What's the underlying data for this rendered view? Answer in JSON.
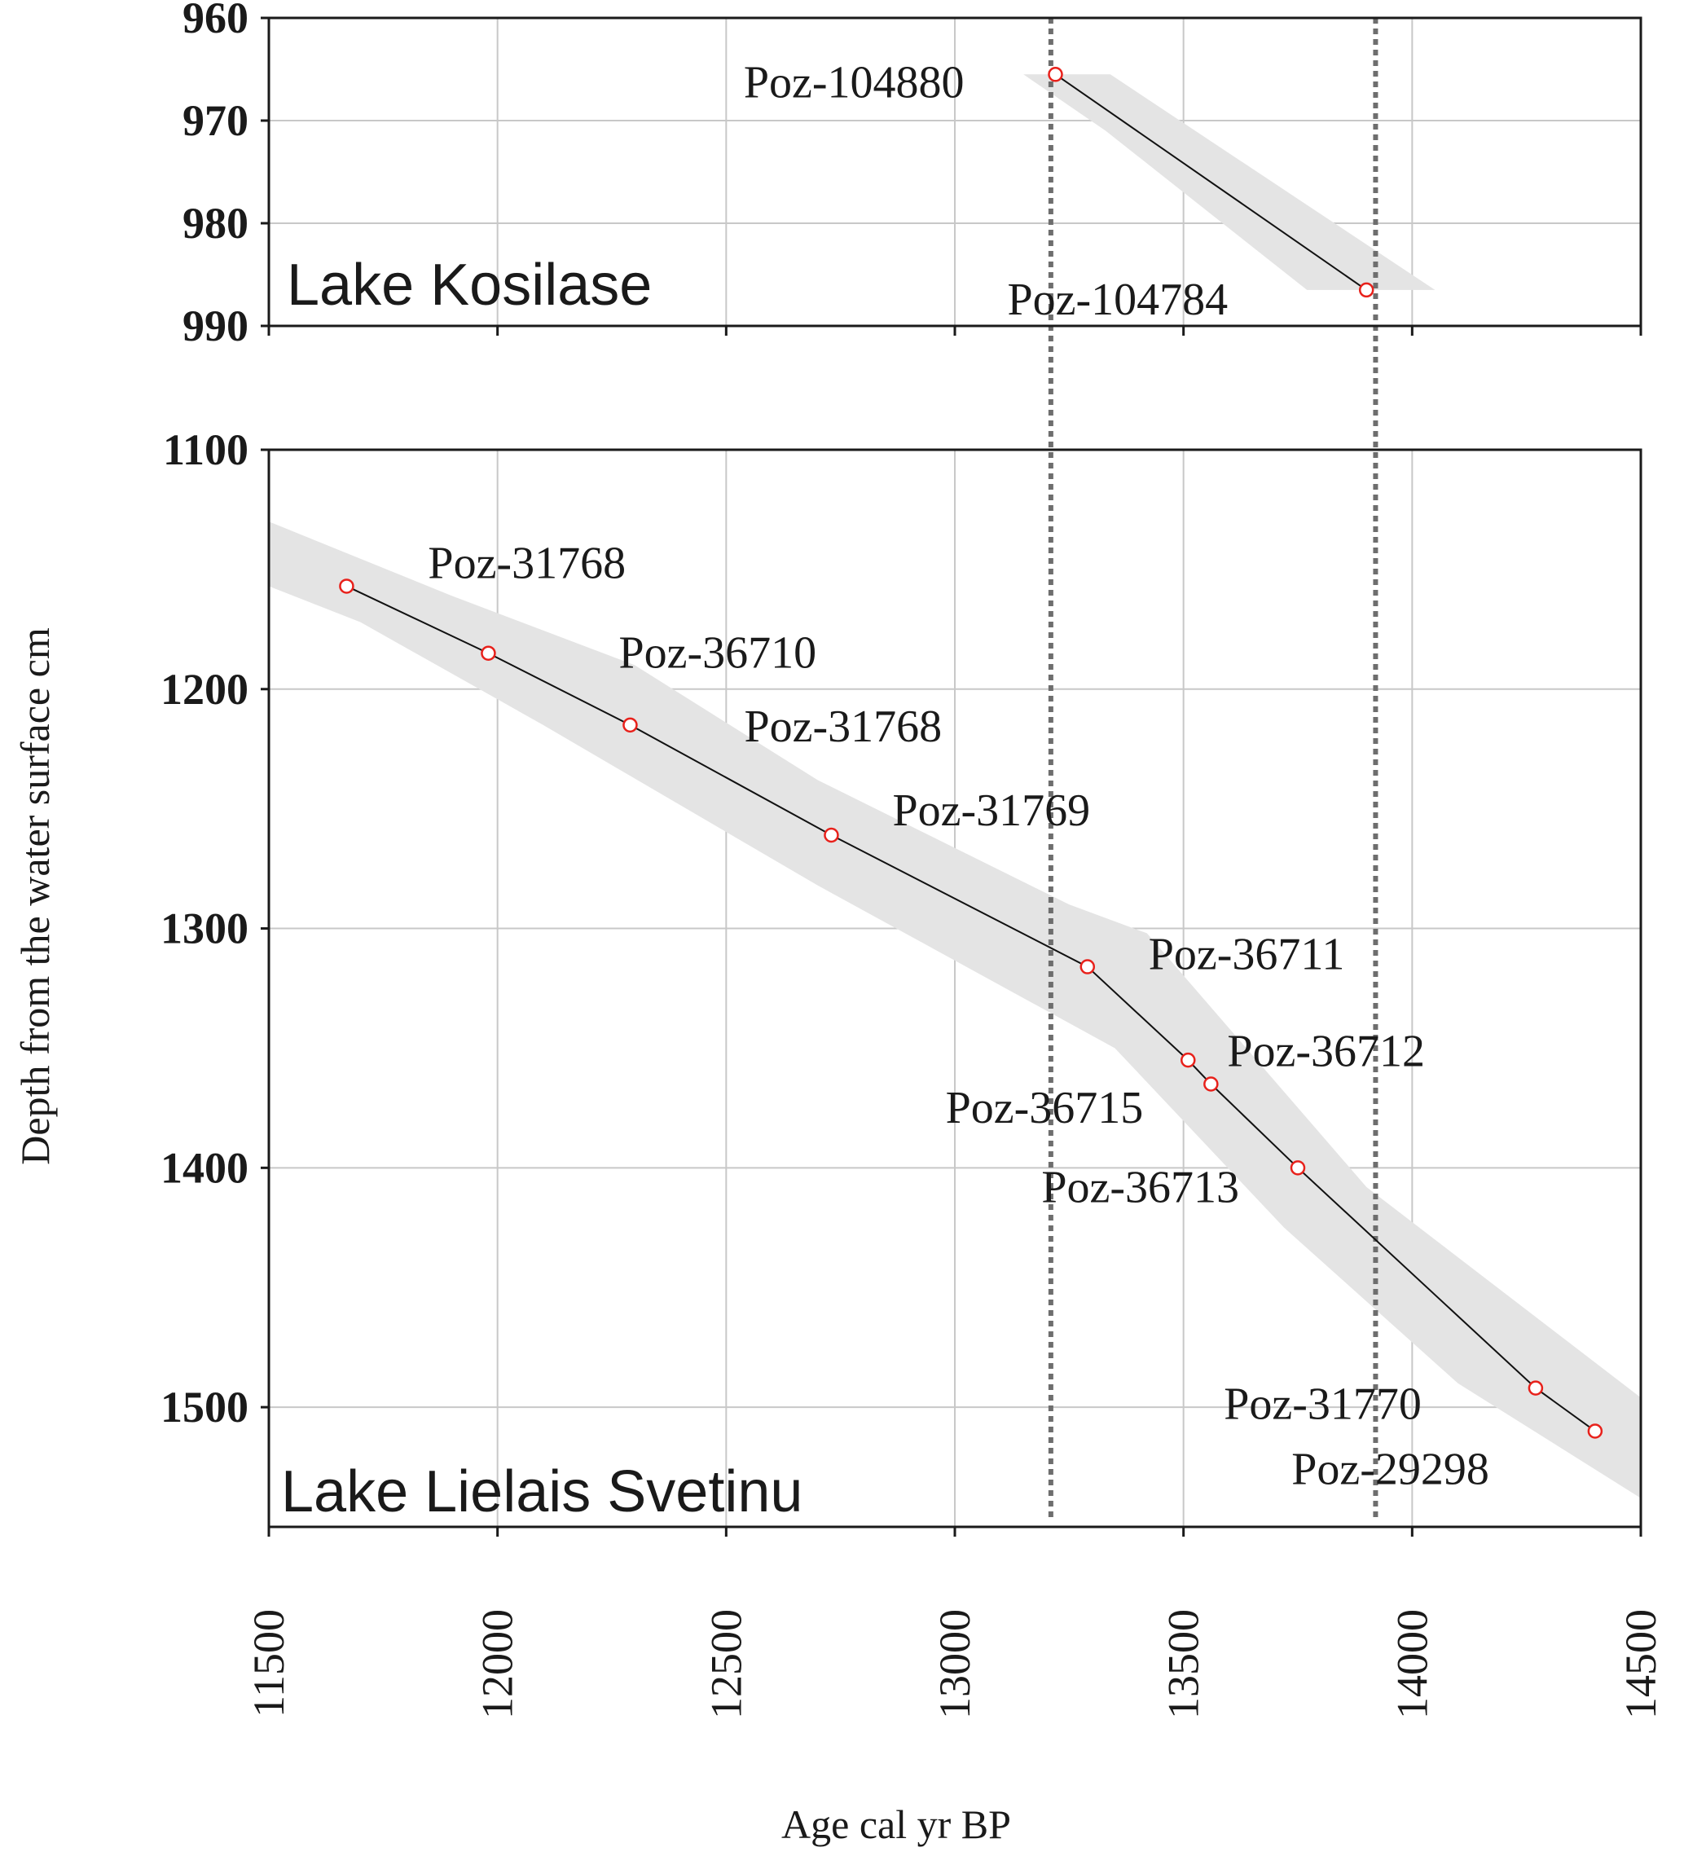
{
  "chart_data": {
    "type": "line",
    "xlabel": "Age cal yr BP",
    "ylabel": "Depth from the water surface cm",
    "x_ticks": [
      11500,
      12000,
      12500,
      13000,
      13500,
      14000,
      14500
    ],
    "xlim": [
      11500,
      14500
    ],
    "vertical_markers": [
      13210,
      13920
    ],
    "colors": {
      "axis": "#1a1a1a",
      "grid": "#c8c8c8",
      "band": "#e4e4e4",
      "line": "#111111",
      "point": "#e8211b",
      "marker": "#6e6e6e"
    },
    "panels": [
      {
        "panel_label": "Lake Kosilase",
        "ylim": [
          960,
          990
        ],
        "y_ticks": [
          960,
          970,
          980,
          990
        ],
        "y_inverted": true,
        "series": [
          {
            "points": [
              {
                "label": "Poz-104880",
                "age": 13220,
                "depth": 965.5
              },
              {
                "label": "Poz-104784",
                "age": 13900,
                "depth": 986.5
              }
            ],
            "band_upper": [
              [
                13100,
                965.5
              ],
              [
                13340,
                965.5
              ],
              [
                14050,
                986.5
              ]
            ],
            "band_lower": [
              [
                13150,
                965.5
              ],
              [
                13330,
                971
              ],
              [
                13770,
                986.5
              ]
            ]
          }
        ]
      },
      {
        "panel_label": "Lake Lielais Svetinu",
        "ylim": [
          1100,
          1550
        ],
        "y_ticks": [
          1100,
          1200,
          1300,
          1400,
          1500
        ],
        "y_inverted": true,
        "series": [
          {
            "points": [
              {
                "label": "Poz-31768",
                "age": 11670,
                "depth": 1157
              },
              {
                "label": "Poz-36710",
                "age": 11980,
                "depth": 1185
              },
              {
                "label": "Poz-31768",
                "age": 12290,
                "depth": 1215
              },
              {
                "label": "Poz-31769",
                "age": 12730,
                "depth": 1261
              },
              {
                "label": "Poz-36711",
                "age": 13290,
                "depth": 1316
              },
              {
                "label": "Poz-36715",
                "age": 13510,
                "depth": 1355
              },
              {
                "label": "Poz-36712",
                "age": 13560,
                "depth": 1365
              },
              {
                "label": "Poz-36713",
                "age": 13750,
                "depth": 1400
              },
              {
                "label": "Poz-31770",
                "age": 14270,
                "depth": 1492
              },
              {
                "label": "Poz-29298",
                "age": 14400,
                "depth": 1510
              }
            ],
            "band_upper": [
              [
                11500,
                1130
              ],
              [
                11900,
                1161
              ],
              [
                12300,
                1190
              ],
              [
                12700,
                1238
              ],
              [
                13250,
                1290
              ],
              [
                13420,
                1302
              ],
              [
                13900,
                1408
              ],
              [
                14500,
                1496
              ]
            ],
            "band_lower": [
              [
                11500,
                1157
              ],
              [
                11700,
                1172
              ],
              [
                12100,
                1215
              ],
              [
                12700,
                1282
              ],
              [
                13350,
                1350
              ],
              [
                13720,
                1425
              ],
              [
                14100,
                1490
              ],
              [
                14500,
                1538
              ]
            ]
          }
        ]
      }
    ]
  }
}
